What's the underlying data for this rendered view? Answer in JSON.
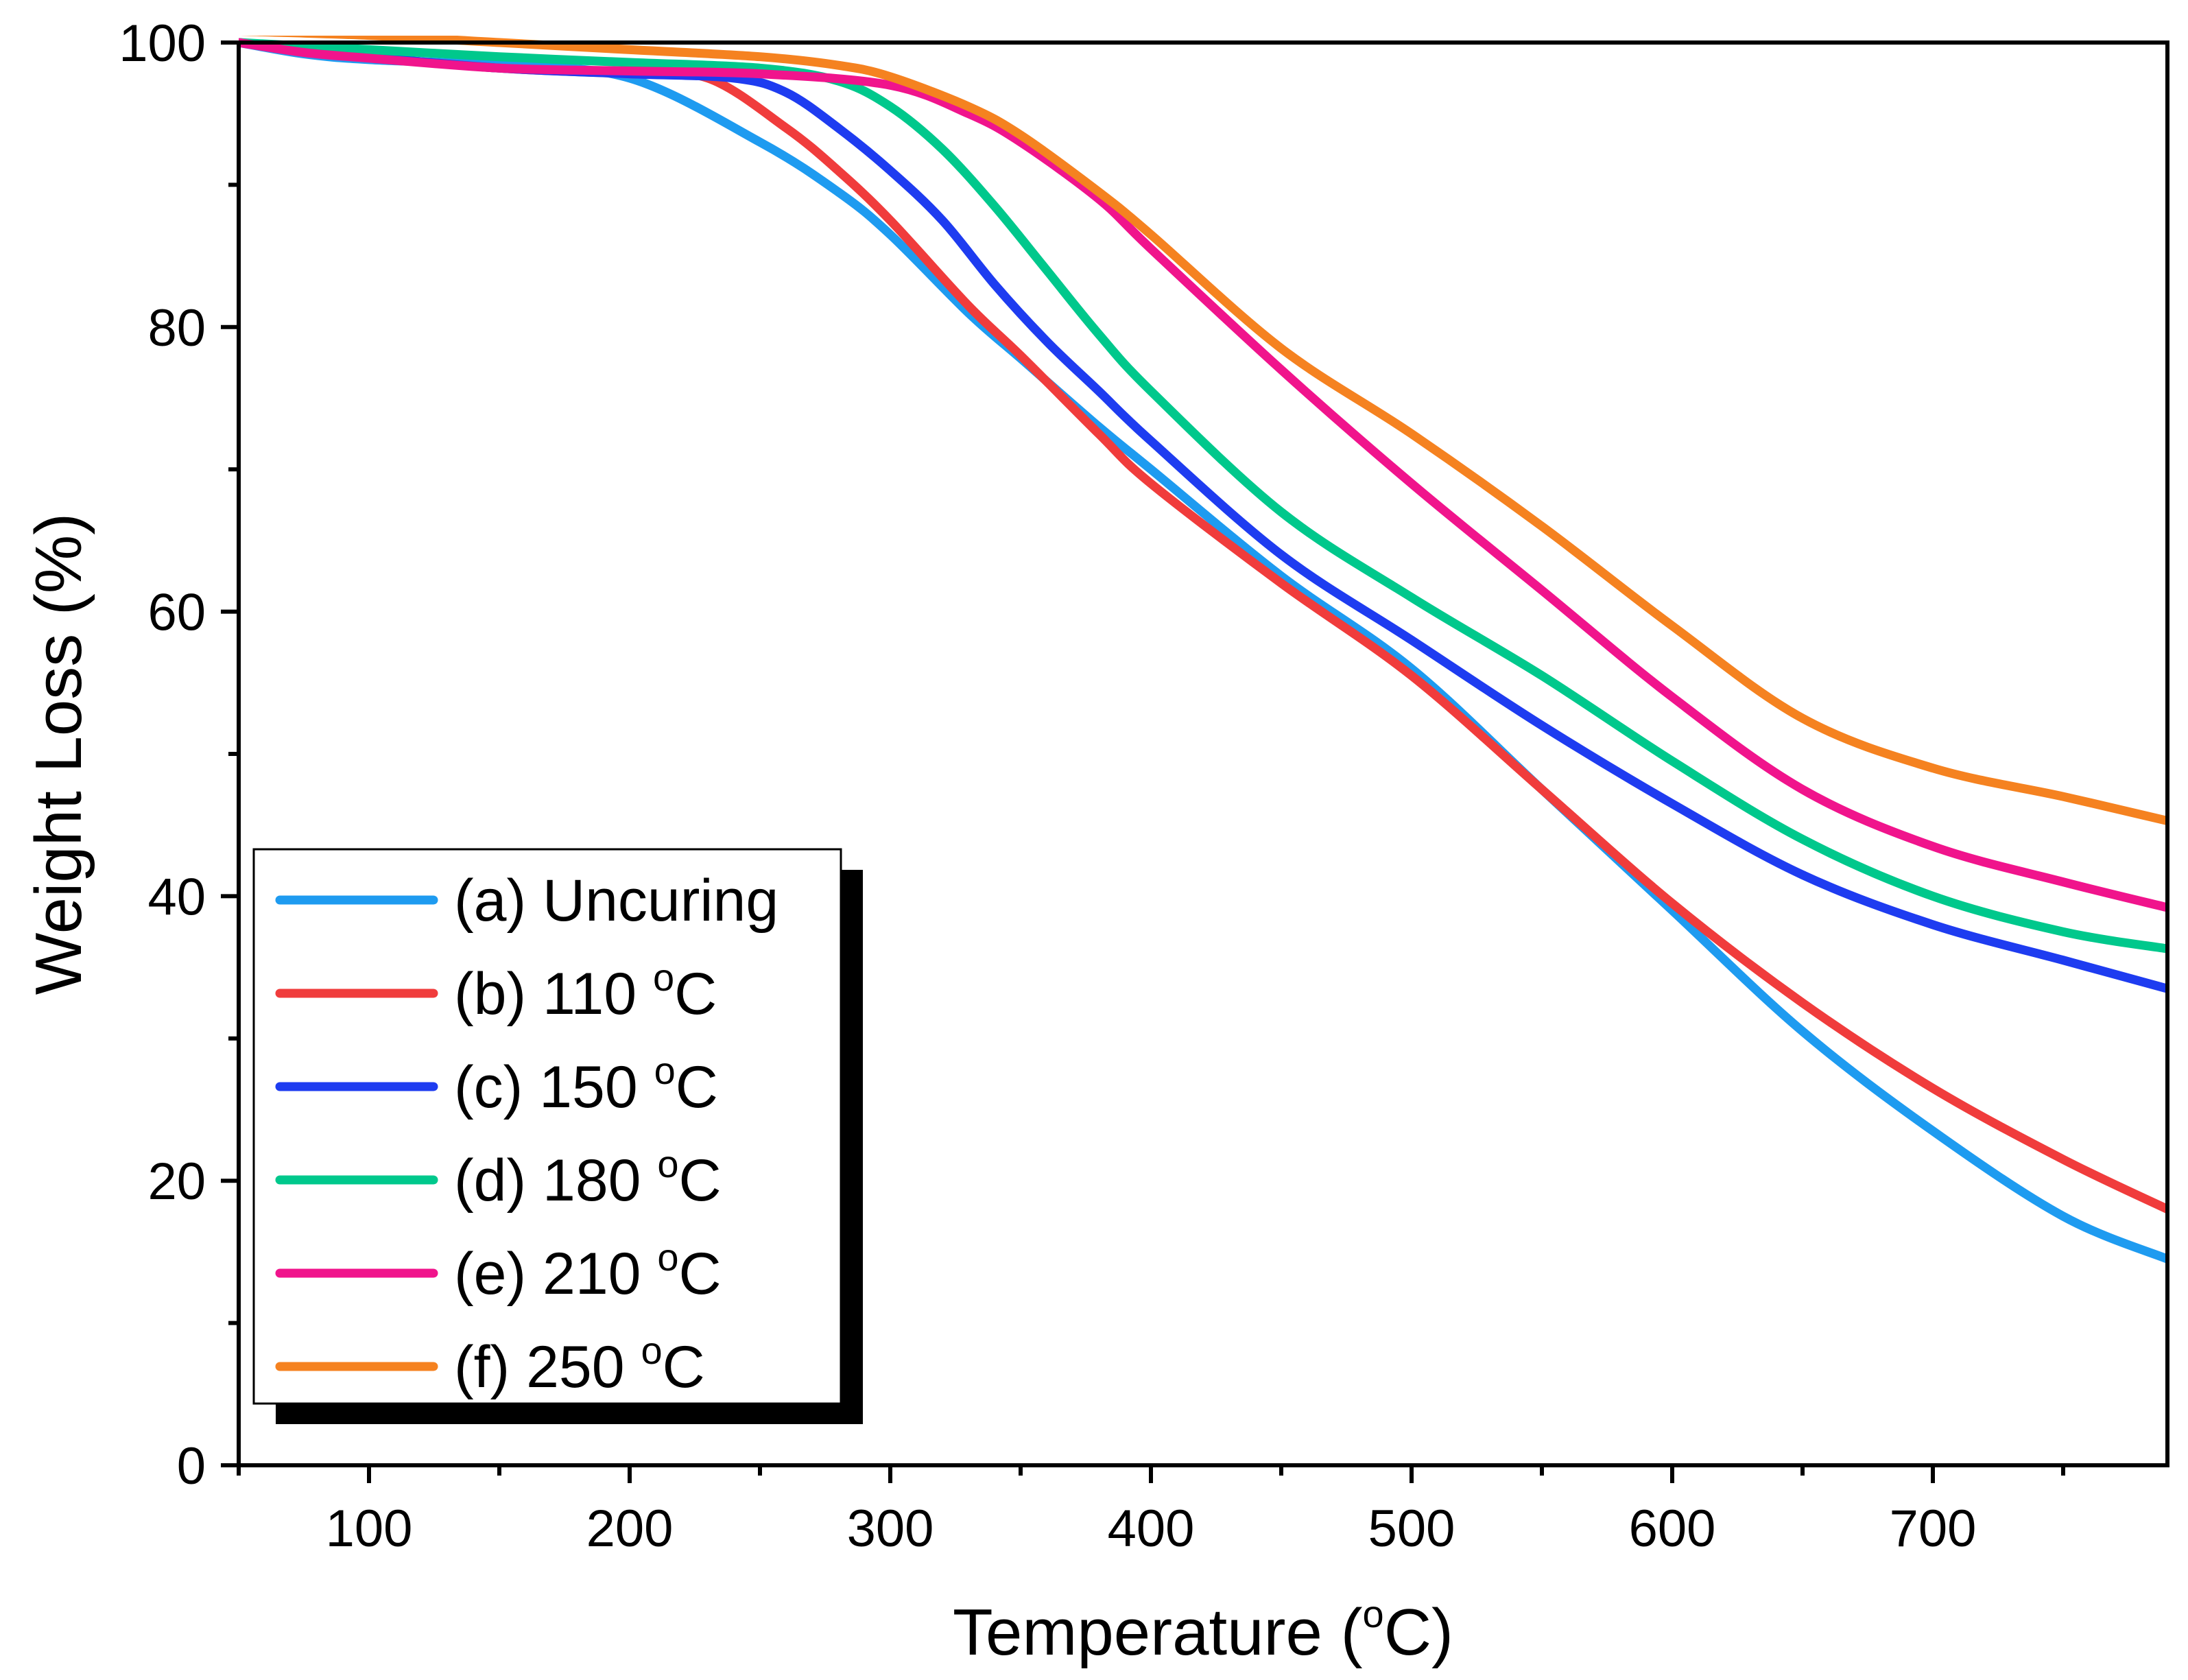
{
  "chart_data": {
    "type": "line",
    "xlabel": "Temperature (",
    "xlabel_sup": "o",
    "xlabel_end": "C)",
    "ylabel": "Weight Loss (%)",
    "xlim": [
      50,
      790
    ],
    "ylim": [
      0,
      100
    ],
    "x_ticks": [
      100,
      200,
      300,
      400,
      500,
      600,
      700
    ],
    "x_tick_labels": [
      "100",
      "200",
      "300",
      "400",
      "500",
      "600",
      "700"
    ],
    "x_minor_ticks": [
      50,
      150,
      250,
      350,
      450,
      550,
      650,
      750
    ],
    "y_ticks": [
      0,
      20,
      40,
      60,
      80,
      100
    ],
    "y_tick_labels": [
      "0",
      "20",
      "40",
      "60",
      "80",
      "100"
    ],
    "y_minor_ticks": [
      10,
      30,
      50,
      70,
      90
    ],
    "grid": false,
    "legend_position": "bottom-left",
    "series": [
      {
        "name": "(a) Uncuring",
        "label_main": "(a) Uncuring",
        "label_sup": "",
        "label_end": "",
        "color": "#1E9BF0",
        "x": [
          50,
          75,
          100,
          150,
          200,
          250,
          280,
          300,
          330,
          350,
          380,
          400,
          450,
          500,
          550,
          600,
          650,
          700,
          750,
          790
        ],
        "y": [
          100,
          99.2,
          98.8,
          98.4,
          97.5,
          93.0,
          89.5,
          86.5,
          81.0,
          77.8,
          73.0,
          70.0,
          62.5,
          56.0,
          47.5,
          39.0,
          30.5,
          23.5,
          17.5,
          14.5
        ]
      },
      {
        "name": "(b) 110 °C",
        "label_main": "(b) 110 ",
        "label_sup": "o",
        "label_end": "C",
        "color": "#F03C3C",
        "x": [
          50,
          100,
          150,
          200,
          230,
          260,
          280,
          300,
          330,
          350,
          380,
          400,
          450,
          500,
          550,
          600,
          650,
          700,
          750,
          790
        ],
        "y": [
          100,
          99.0,
          98.2,
          97.8,
          97.5,
          94.0,
          91.0,
          87.5,
          81.5,
          78.0,
          72.5,
          69.0,
          62.0,
          55.5,
          47.5,
          39.5,
          32.5,
          26.5,
          21.5,
          18.0
        ]
      },
      {
        "name": "(c) 150 °C",
        "label_main": "(c) 150 ",
        "label_sup": "o",
        "label_end": "C",
        "color": "#1E3CF0",
        "x": [
          50,
          100,
          150,
          200,
          240,
          260,
          280,
          300,
          320,
          340,
          360,
          380,
          400,
          450,
          500,
          550,
          600,
          650,
          700,
          750,
          790
        ],
        "y": [
          100,
          99.0,
          98.2,
          97.8,
          97.5,
          96.5,
          94.0,
          91.0,
          87.5,
          83.0,
          79.0,
          75.5,
          72.0,
          64.0,
          58.0,
          52.0,
          46.5,
          41.5,
          38.0,
          35.5,
          33.5
        ]
      },
      {
        "name": "(d) 180 °C",
        "label_main": "(d) 180 ",
        "label_sup": "o",
        "label_end": "C",
        "color": "#00C88C",
        "x": [
          50,
          100,
          150,
          200,
          250,
          280,
          300,
          320,
          340,
          360,
          380,
          400,
          450,
          500,
          550,
          600,
          650,
          700,
          750,
          790
        ],
        "y": [
          100,
          99.5,
          99.0,
          98.6,
          98.2,
          97.3,
          95.5,
          92.5,
          88.5,
          84.0,
          79.5,
          75.5,
          67.0,
          61.0,
          55.5,
          49.5,
          44.0,
          40.0,
          37.5,
          36.3
        ]
      },
      {
        "name": "(e) 210 °C",
        "label_main": "(e) 210 ",
        "label_sup": "o",
        "label_end": "C",
        "color": "#F0148C",
        "x": [
          50,
          75,
          100,
          150,
          200,
          250,
          300,
          330,
          350,
          380,
          400,
          450,
          500,
          550,
          600,
          650,
          700,
          750,
          790
        ],
        "y": [
          100,
          99.3,
          98.9,
          98.2,
          98.0,
          97.8,
          97.0,
          95.0,
          93.0,
          89.0,
          85.5,
          77.0,
          69.0,
          61.5,
          54.0,
          47.5,
          43.5,
          41.0,
          39.2
        ]
      },
      {
        "name": "(f) 250 °C",
        "label_main": "(f) 250 ",
        "label_sup": "o",
        "label_end": "C",
        "color": "#F58220",
        "x": [
          50,
          100,
          150,
          200,
          250,
          280,
          300,
          330,
          350,
          380,
          400,
          450,
          500,
          550,
          600,
          650,
          700,
          750,
          790
        ],
        "y": [
          100.8,
          100.5,
          100.0,
          99.5,
          99.0,
          98.4,
          97.6,
          95.5,
          93.5,
          89.5,
          86.5,
          78.5,
          72.5,
          66.0,
          59.0,
          52.5,
          49.0,
          47.0,
          45.3
        ]
      }
    ]
  }
}
